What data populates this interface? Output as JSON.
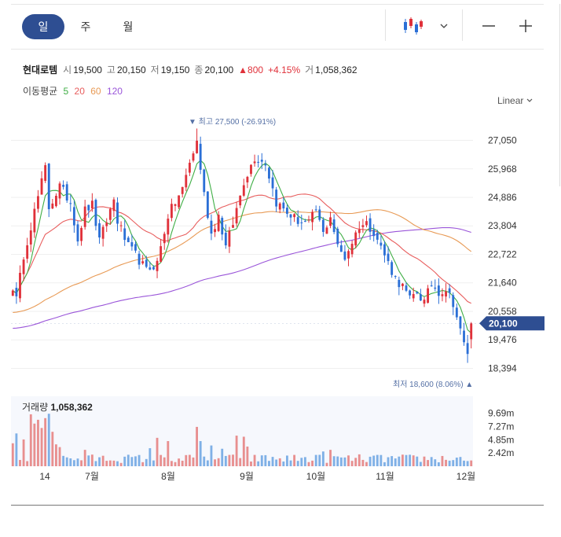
{
  "period_tabs": [
    {
      "label": "일",
      "active": true
    },
    {
      "label": "주",
      "active": false
    },
    {
      "label": "월",
      "active": false
    }
  ],
  "toolbar": {
    "chart_type_icon": "candlestick-icon",
    "dropdown_icon": "chevron-down-icon",
    "zoom_out_icon": "minus-icon",
    "zoom_in_icon": "plus-icon"
  },
  "stock": {
    "name": "현대로템",
    "open_label": "시",
    "open": "19,500",
    "high_label": "고",
    "high": "20,150",
    "low_label": "저",
    "low": "19,150",
    "close_label": "종",
    "close": "20,100",
    "change": "▲800",
    "change_pct": "+4.15%",
    "volume_label": "거",
    "volume": "1,058,362"
  },
  "moving_average": {
    "label": "이동평균",
    "periods": [
      {
        "value": "5",
        "color": "#3fae45"
      },
      {
        "value": "20",
        "color": "#e85d5d"
      },
      {
        "value": "60",
        "color": "#e89a55"
      },
      {
        "value": "120",
        "color": "#9a55d9"
      }
    ]
  },
  "scale_selector": {
    "label": "Linear"
  },
  "chart_data": {
    "type": "candlestick",
    "price_axis": {
      "min": 17900,
      "max": 28200,
      "ticks": [
        "27,050",
        "25,968",
        "24,886",
        "23,804",
        "22,722",
        "21,640",
        "20,558",
        "19,476",
        "18,394"
      ]
    },
    "current_price_label": "20,100",
    "max_annotation": "▼ 최고 27,500 (-26.91%)",
    "min_annotation": "최저 18,600 (8.06%) ▲",
    "x_labels": [
      "14",
      "7월",
      "8월",
      "9월",
      "10월",
      "11월",
      "12월"
    ],
    "volume_panel": {
      "title": "거래량",
      "value": "1,058,362",
      "ticks": [
        "9.69m",
        "7.27m",
        "4.85m",
        "2.42m"
      ],
      "max": 12800000
    },
    "anchors": [
      [
        0,
        21500
      ],
      [
        1,
        21000
      ],
      [
        3,
        22700
      ],
      [
        7,
        24900
      ],
      [
        9,
        26000
      ],
      [
        10,
        24500
      ],
      [
        13,
        25300
      ],
      [
        16,
        24700
      ],
      [
        18,
        23300
      ],
      [
        20,
        24400
      ],
      [
        22,
        24600
      ],
      [
        24,
        23200
      ],
      [
        28,
        24800
      ],
      [
        29,
        24000
      ],
      [
        32,
        23000
      ],
      [
        34,
        22700
      ],
      [
        37,
        22100
      ],
      [
        40,
        22400
      ],
      [
        43,
        24200
      ],
      [
        47,
        25200
      ],
      [
        49,
        26200
      ],
      [
        51,
        27000
      ],
      [
        53,
        25000
      ],
      [
        55,
        23500
      ],
      [
        57,
        24200
      ],
      [
        59,
        23000
      ],
      [
        61,
        23900
      ],
      [
        64,
        25500
      ],
      [
        67,
        26400
      ],
      [
        70,
        26200
      ],
      [
        73,
        24700
      ],
      [
        76,
        24300
      ],
      [
        79,
        24000
      ],
      [
        82,
        23900
      ],
      [
        84,
        24400
      ],
      [
        86,
        23500
      ],
      [
        88,
        24200
      ],
      [
        90,
        23000
      ],
      [
        92,
        22600
      ],
      [
        94,
        23200
      ],
      [
        96,
        23800
      ],
      [
        98,
        23900
      ],
      [
        100,
        23600
      ],
      [
        102,
        23000
      ],
      [
        104,
        22400
      ],
      [
        106,
        21800
      ],
      [
        108,
        21500
      ],
      [
        110,
        21000
      ],
      [
        112,
        21300
      ],
      [
        114,
        20900
      ],
      [
        116,
        21600
      ],
      [
        118,
        21300
      ],
      [
        120,
        21400
      ],
      [
        122,
        20900
      ],
      [
        124,
        19800
      ],
      [
        125,
        19300
      ],
      [
        126,
        19000
      ],
      [
        127,
        20100
      ]
    ],
    "bar_count": 128
  }
}
